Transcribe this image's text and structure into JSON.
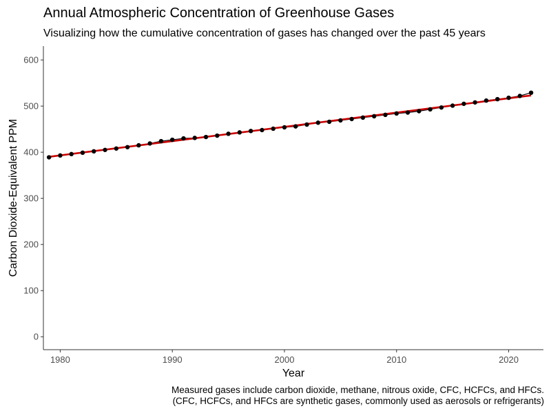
{
  "chart_data": {
    "type": "scatter",
    "title": "Annual Atmospheric Concentration of Greenhouse Gases",
    "subtitle": "Visualizing how the cumulative concentration of gases has changed over the past 45 years",
    "xlabel": "Year",
    "ylabel": "Carbon Dioxide-Equivalent PPM",
    "caption": [
      "Measured gases include carbon dioxide, methane, nitrous oxide, CFC, HCFCs, and HFCs.",
      "(CFC, HCFCs, and HFCs are synthetic gases, commonly used as aerosols or refrigerants)"
    ],
    "xlim": [
      1978.5,
      2023.1
    ],
    "ylim": [
      -28,
      630
    ],
    "x_ticks": [
      1980,
      1990,
      2000,
      2010,
      2020
    ],
    "y_ticks": [
      0,
      100,
      200,
      300,
      400,
      500,
      600
    ],
    "grid": false,
    "legend": "none",
    "series": [
      {
        "x": [
          1979,
          1980,
          1981,
          1982,
          1983,
          1984,
          1985,
          1986,
          1987,
          1988,
          1989,
          1990,
          1991,
          1992,
          1993,
          1994,
          1995,
          1996,
          1997,
          1998,
          1999,
          2000,
          2001,
          2002,
          2003,
          2004,
          2005,
          2006,
          2007,
          2008,
          2009,
          2010,
          2011,
          2012,
          2013,
          2014,
          2015,
          2016,
          2017,
          2018,
          2019,
          2020,
          2021,
          2022
        ],
        "values": [
          389,
          393,
          396,
          399,
          402,
          405,
          408,
          411,
          415,
          419,
          424,
          427,
          430,
          431,
          433,
          436,
          440,
          443,
          446,
          448,
          451,
          454,
          456,
          460,
          464,
          466,
          469,
          472,
          475,
          478,
          481,
          484,
          486,
          489,
          493,
          497,
          501,
          505,
          508,
          512,
          515,
          518,
          522,
          529
        ]
      }
    ],
    "trend_line": {
      "x": [
        1979,
        2022
      ],
      "values": [
        390,
        523
      ]
    },
    "colors": {
      "points": "#000000",
      "line": "#000000",
      "trend": "#cc0000",
      "axis": "#333333",
      "tick_label": "#4d4d4d"
    }
  }
}
